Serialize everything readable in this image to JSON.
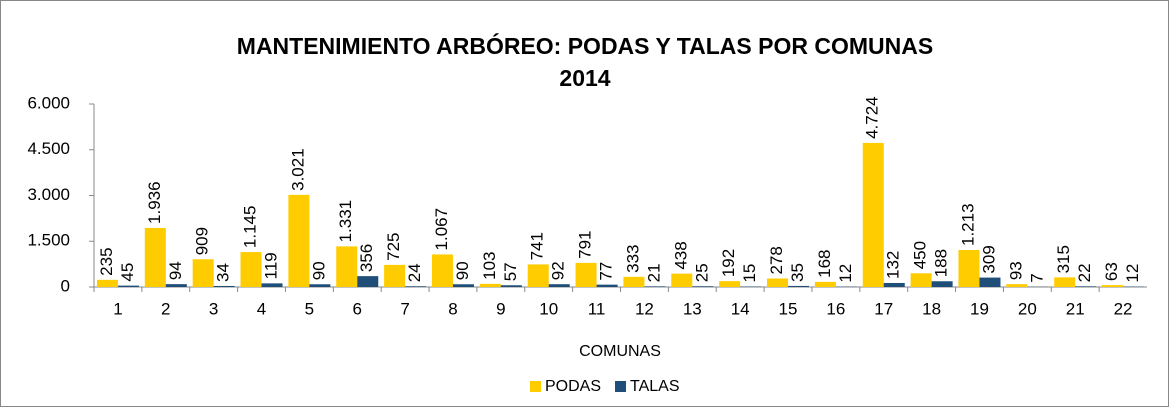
{
  "chart_data": {
    "type": "bar",
    "title": "MANTENIMIENTO ARBÓREO: PODAS Y TALAS POR COMUNAS",
    "subtitle": "2014",
    "x_label": "COMUNAS",
    "categories": [
      "1",
      "2",
      "3",
      "4",
      "5",
      "6",
      "7",
      "8",
      "9",
      "10",
      "11",
      "12",
      "13",
      "14",
      "15",
      "16",
      "17",
      "18",
      "19",
      "20",
      "21",
      "22"
    ],
    "series": [
      {
        "name": "PODAS",
        "color": "#FFCC00",
        "values": [
          235,
          1936,
          909,
          1145,
          3021,
          1331,
          725,
          1067,
          103,
          741,
          791,
          333,
          438,
          192,
          278,
          168,
          4724,
          450,
          1213,
          93,
          315,
          63
        ],
        "value_labels": [
          "235",
          "1.936",
          "909",
          "1.145",
          "3.021",
          "1.331",
          "725",
          "1.067",
          "103",
          "741",
          "791",
          "333",
          "438",
          "192",
          "278",
          "168",
          "4.724",
          "450",
          "1.213",
          "93",
          "315",
          "63"
        ]
      },
      {
        "name": "TALAS",
        "color": "#1F4E79",
        "values": [
          45,
          94,
          34,
          119,
          90,
          356,
          24,
          90,
          57,
          92,
          77,
          21,
          25,
          15,
          35,
          12,
          132,
          188,
          309,
          7,
          22,
          12
        ]
      }
    ],
    "ylim": [
      0,
      6000
    ],
    "yticks": [
      0,
      {
        "value": 1500,
        "label": "1.500"
      },
      {
        "value": 3000,
        "label": "3.000"
      },
      {
        "value": 4500,
        "label": "4.500"
      },
      {
        "value": 6000,
        "label": "6.000"
      }
    ],
    "legend": "bottom"
  }
}
